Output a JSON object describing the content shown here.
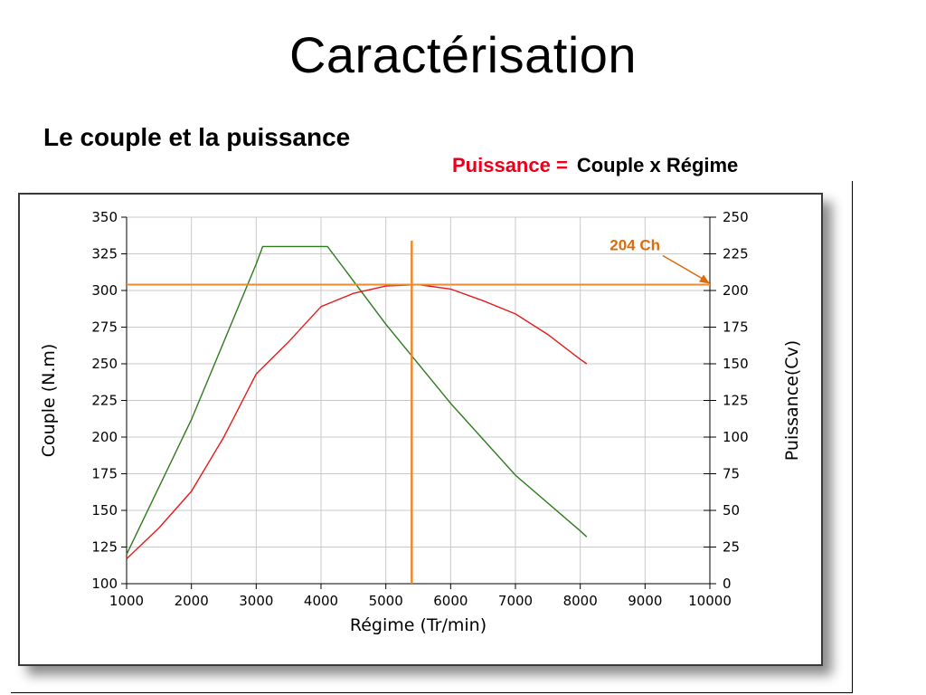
{
  "slide": {
    "title": "Caractérisation",
    "subtitle": "Le couple et la puissance",
    "formula_lhs": "Puissance =",
    "formula_rhs": "Couple x Régime"
  },
  "colors": {
    "torque": "#2e7a1e",
    "power": "#e31d1d",
    "marker": "#ee8a2d",
    "marker_label": "#d96d0e",
    "formula_accent": "#e8001c",
    "grid": "#c8c8c8"
  },
  "chart_data": {
    "type": "line",
    "xlabel": "Régime (Tr/min)",
    "ylabel_left": "Couple (N.m)",
    "ylabel_right": "Puissance(Cv)",
    "xlim": [
      1000,
      10000
    ],
    "ylim_left": [
      100,
      350
    ],
    "ylim_right": [
      0,
      250
    ],
    "x_ticks": [
      1000,
      2000,
      3000,
      4000,
      5000,
      6000,
      7000,
      8000,
      9000,
      10000
    ],
    "y_left_ticks": [
      100,
      125,
      150,
      175,
      200,
      225,
      250,
      275,
      300,
      325,
      350
    ],
    "y_right_ticks": [
      0,
      25,
      50,
      75,
      100,
      125,
      150,
      175,
      200,
      225,
      250
    ],
    "grid": true,
    "series": [
      {
        "axis": "left",
        "color": "#2e7a1e",
        "x": [
          1000,
          2000,
          3000,
          3100,
          4100,
          5000,
          6000,
          7000,
          8000,
          8100
        ],
        "values": [
          120,
          212,
          318,
          330,
          330,
          277,
          223,
          174,
          136,
          132
        ]
      },
      {
        "axis": "right",
        "color": "#e31d1d",
        "x": [
          1000,
          1500,
          2000,
          2500,
          3000,
          3500,
          4000,
          4500,
          5000,
          5500,
          6000,
          6500,
          7000,
          7500,
          8000,
          8100
        ],
        "values": [
          17,
          38,
          63,
          100,
          143,
          165,
          189,
          198,
          203,
          204,
          201,
          193,
          184,
          170,
          153,
          150
        ]
      }
    ],
    "annotations": [
      {
        "text": "204 Ch",
        "target_x": 10000,
        "target_y_right": 204
      }
    ],
    "reference_lines": [
      {
        "orientation": "horizontal",
        "axis": "right",
        "value": 204,
        "from_x": 1000,
        "to_x": 10000
      },
      {
        "orientation": "vertical",
        "value": 5400,
        "from_y_left": 100,
        "to_y_left": 334
      }
    ]
  }
}
